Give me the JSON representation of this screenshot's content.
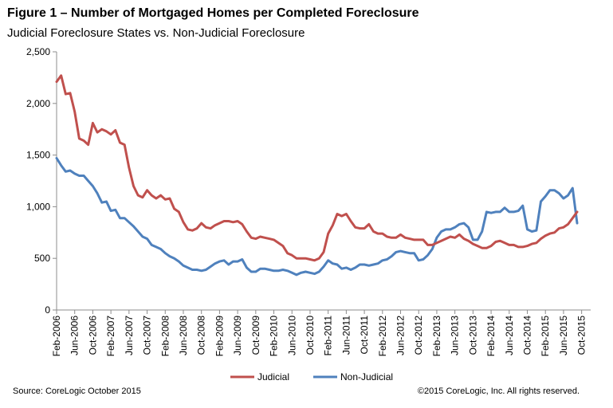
{
  "header": {
    "title": "Figure 1 – Number of Mortgaged Homes per Completed Foreclosure",
    "subtitle": "Judicial Foreclosure States vs. Non-Judicial Foreclosure"
  },
  "footer": {
    "source": "Source: CoreLogic  October 2015",
    "copyright": "©2015 CoreLogic, Inc. All rights reserved."
  },
  "chart_data": {
    "type": "line",
    "x_start": "Feb-2006",
    "x_step_months": 1,
    "xtick_labels": [
      "Feb-2006",
      "Jun-2006",
      "Oct-2006",
      "Feb-2007",
      "Jun-2007",
      "Oct-2007",
      "Feb-2008",
      "Jun-2008",
      "Oct-2008",
      "Feb-2009",
      "Jun-2009",
      "Oct-2009",
      "Feb-2010",
      "Jun-2010",
      "Oct-2010",
      "Feb-2011",
      "Jun-2011",
      "Oct-2011",
      "Feb-2012",
      "Jun-2012",
      "Oct-2012",
      "Feb-2013",
      "Jun-2013",
      "Oct-2013",
      "Feb-2014",
      "Jun-2014",
      "Oct-2014",
      "Feb-2015",
      "Jun-2015",
      "Oct-2015"
    ],
    "ylim": [
      0,
      2500
    ],
    "yticks": [
      0,
      500,
      1000,
      1500,
      2000,
      2500
    ],
    "ytick_labels": [
      "0",
      "500",
      "1,000",
      "1,500",
      "2,000",
      "2,500"
    ],
    "grid": false,
    "legend_position": "bottom-center",
    "series": [
      {
        "name": "Judicial",
        "color": "#c0504d",
        "values": [
          2210,
          2270,
          2090,
          2100,
          1920,
          1660,
          1640,
          1600,
          1810,
          1720,
          1750,
          1730,
          1700,
          1740,
          1620,
          1600,
          1380,
          1200,
          1110,
          1090,
          1160,
          1110,
          1080,
          1110,
          1070,
          1080,
          980,
          950,
          850,
          780,
          770,
          790,
          840,
          800,
          790,
          820,
          840,
          860,
          860,
          850,
          860,
          830,
          760,
          700,
          690,
          710,
          700,
          690,
          680,
          650,
          620,
          550,
          530,
          500,
          500,
          500,
          490,
          480,
          500,
          560,
          740,
          820,
          930,
          910,
          930,
          860,
          800,
          790,
          790,
          830,
          760,
          740,
          740,
          710,
          700,
          700,
          730,
          700,
          690,
          680,
          680,
          680,
          630,
          630,
          650,
          670,
          690,
          710,
          700,
          730,
          690,
          670,
          640,
          620,
          600,
          600,
          620,
          660,
          670,
          650,
          630,
          630,
          610,
          610,
          620,
          640,
          650,
          690,
          720,
          740,
          750,
          790,
          800,
          830,
          890,
          950
        ]
      },
      {
        "name": "Non-Judicial",
        "color": "#4f81bd",
        "values": [
          1470,
          1400,
          1340,
          1350,
          1320,
          1300,
          1300,
          1250,
          1200,
          1130,
          1040,
          1050,
          960,
          970,
          890,
          890,
          850,
          810,
          760,
          710,
          690,
          630,
          610,
          590,
          550,
          520,
          500,
          470,
          430,
          410,
          390,
          390,
          380,
          390,
          420,
          450,
          470,
          480,
          440,
          470,
          470,
          490,
          410,
          370,
          370,
          400,
          400,
          390,
          380,
          380,
          390,
          380,
          360,
          340,
          360,
          370,
          360,
          350,
          370,
          420,
          480,
          450,
          440,
          400,
          410,
          390,
          410,
          440,
          440,
          430,
          440,
          450,
          480,
          490,
          520,
          560,
          570,
          560,
          550,
          550,
          480,
          490,
          530,
          590,
          700,
          760,
          780,
          780,
          800,
          830,
          840,
          800,
          680,
          680,
          760,
          950,
          940,
          950,
          950,
          990,
          950,
          950,
          960,
          1010,
          780,
          760,
          770,
          1050,
          1100,
          1160,
          1160,
          1130,
          1080,
          1110,
          1180,
          840
        ]
      }
    ]
  }
}
